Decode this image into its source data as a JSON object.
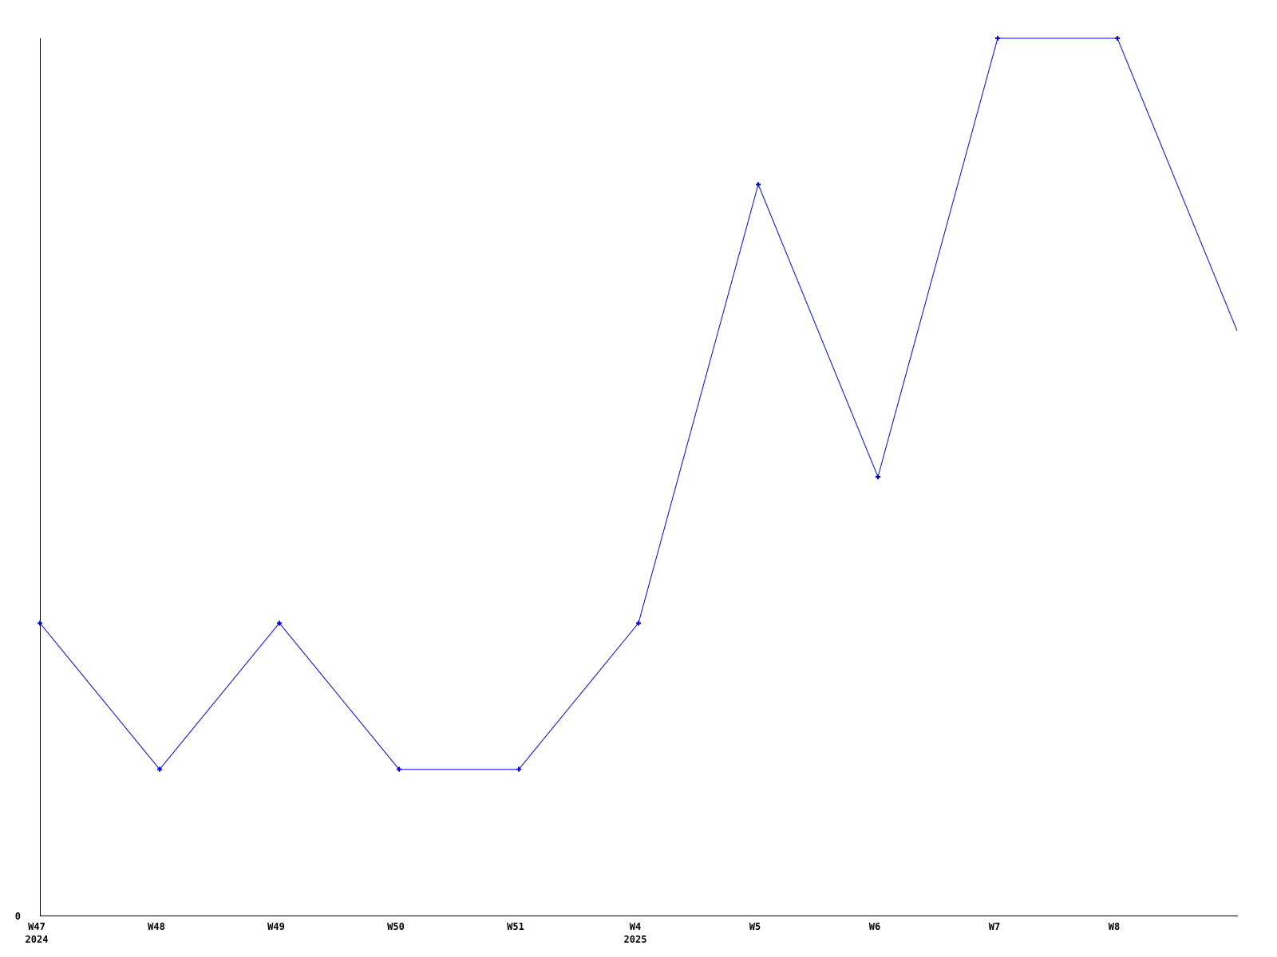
{
  "chart_data": {
    "type": "line",
    "title": "",
    "xlabel": "",
    "ylabel": "",
    "grid": false,
    "legend": "none",
    "background_color": "#ffffff",
    "axis_color": "#000000",
    "line_color": "#0000ff",
    "marker_color": "#0000ff",
    "marker_shape": "plus",
    "ylim": [
      0,
      6
    ],
    "y_tick_labels": [
      "0"
    ],
    "categories": [
      {
        "label": "W47",
        "sublabel": "2024"
      },
      {
        "label": "W48",
        "sublabel": ""
      },
      {
        "label": "W49",
        "sublabel": ""
      },
      {
        "label": "W50",
        "sublabel": ""
      },
      {
        "label": "W51",
        "sublabel": ""
      },
      {
        "label": "W4",
        "sublabel": "2025"
      },
      {
        "label": "W5",
        "sublabel": ""
      },
      {
        "label": "W6",
        "sublabel": ""
      },
      {
        "label": "W7",
        "sublabel": ""
      },
      {
        "label": "W8",
        "sublabel": ""
      }
    ],
    "values": [
      2,
      1,
      2,
      1,
      1,
      2,
      5,
      3,
      6,
      6
    ],
    "clipped_trailing_point": {
      "value": 4,
      "label": "",
      "marker_visible": false
    }
  }
}
